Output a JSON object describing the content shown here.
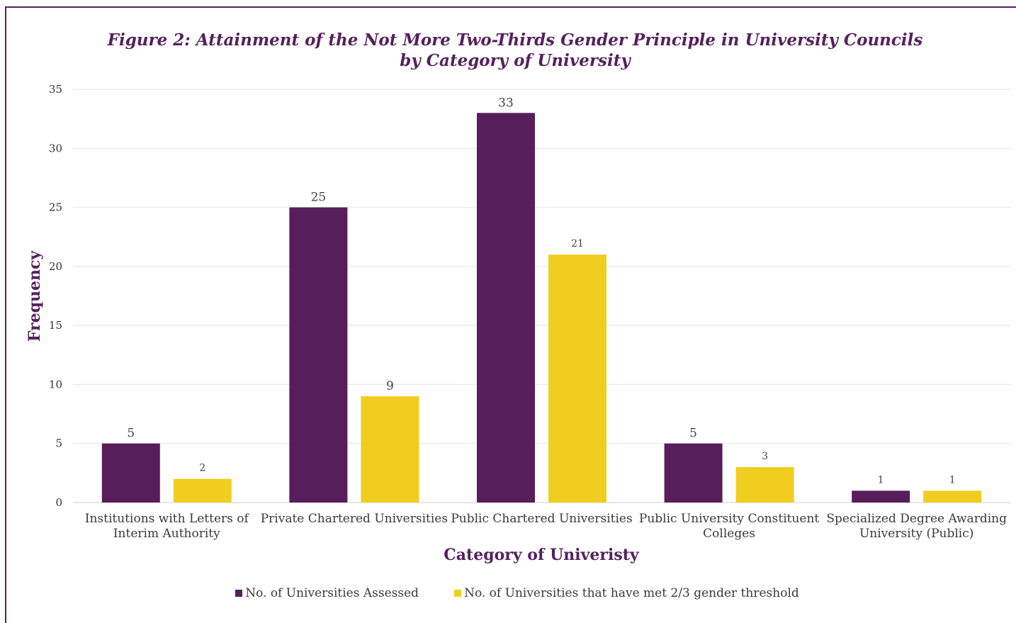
{
  "colors": {
    "series_1": "#571e5b",
    "series_2": "#efce20",
    "title": "#55215d",
    "grid": "#e4e4e4"
  },
  "chart_data": {
    "type": "bar",
    "title_line1": "Figure 2: Attainment of the Not More Two-Thirds Gender Principle in University Councils",
    "title_line2": "by Category of University",
    "xlabel": "Category of Univeristy",
    "ylabel": "Frequency",
    "ylim": [
      0,
      35
    ],
    "yticks": [
      0,
      5,
      10,
      15,
      20,
      25,
      30,
      35
    ],
    "grid": true,
    "legend_position": "bottom",
    "categories": [
      [
        "Institutions with Letters of",
        "Interim Authority"
      ],
      [
        "Private Chartered Universities"
      ],
      [
        "Public Chartered Universities"
      ],
      [
        "Public University Constituent",
        "Colleges"
      ],
      [
        "Specialized Degree Awarding",
        "University (Public)"
      ]
    ],
    "series": [
      {
        "name": "No. of Universities Assessed",
        "values": [
          5,
          25,
          33,
          5,
          1
        ]
      },
      {
        "name": "No. of Universities that have met 2/3 gender threshold",
        "values": [
          2,
          9,
          21,
          3,
          1
        ]
      }
    ]
  }
}
